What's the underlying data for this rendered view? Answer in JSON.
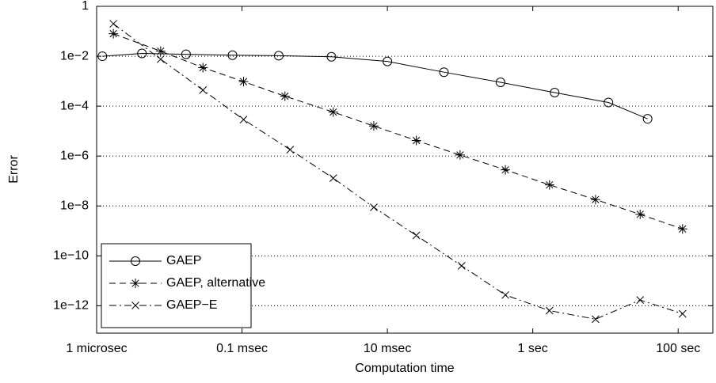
{
  "chart_data": {
    "type": "line",
    "xlabel": "Computation time",
    "ylabel": "Error",
    "xlog": true,
    "ylog": true,
    "xlim": [
      1e-06,
      300
    ],
    "ylim": [
      8e-14,
      1
    ],
    "xticks": [
      {
        "value": 1e-06,
        "label": "1 microsec"
      },
      {
        "value": 0.0001,
        "label": "0.1 msec"
      },
      {
        "value": 0.01,
        "label": "10 msec"
      },
      {
        "value": 1,
        "label": "1 sec"
      },
      {
        "value": 100,
        "label": "100 sec"
      }
    ],
    "yticks": [
      1,
      {
        "value": 0.01,
        "label": "1e−2"
      },
      {
        "value": 0.0001,
        "label": "1e−4"
      },
      {
        "value": 1e-06,
        "label": "1e−6"
      },
      {
        "value": 1e-08,
        "label": "1e−8"
      },
      {
        "value": 1e-10,
        "label": "1e−10"
      },
      {
        "value": 1e-12,
        "label": "1e−12"
      }
    ],
    "grid": "y",
    "legend": "lower left",
    "series": [
      {
        "name": "GAEP",
        "color": "#000000",
        "linestyle": "solid",
        "marker": "o",
        "x": [
          1.2e-06,
          4.2e-06,
          1.7e-05,
          7.4e-05,
          0.00032,
          0.0017,
          0.01,
          0.06,
          0.36,
          2,
          11,
          38
        ],
        "values": [
          0.01,
          0.013,
          0.012,
          0.011,
          0.0105,
          0.0095,
          0.0062,
          0.0023,
          0.0009,
          0.00035,
          0.00014,
          3.1e-05
        ]
      },
      {
        "name": "GAEP, alternative",
        "color": "#000000",
        "linestyle": "dashed",
        "marker": "*",
        "x": [
          1.7e-06,
          7.6e-06,
          2.9e-05,
          0.000105,
          0.00039,
          0.0018,
          0.0065,
          0.025,
          0.1,
          0.42,
          1.7,
          7.3,
          30,
          115
        ],
        "values": [
          0.08,
          0.016,
          0.0035,
          0.00096,
          0.00025,
          5.8e-05,
          1.6e-05,
          4.2e-06,
          1.1e-06,
          2.8e-07,
          7e-08,
          1.8e-08,
          4.6e-09,
          1.2e-09
        ]
      },
      {
        "name": "GAEP−E",
        "color": "#000000",
        "linestyle": "dashdot",
        "marker": "x",
        "x": [
          1.7e-06,
          7.6e-06,
          2.9e-05,
          0.000105,
          0.00046,
          0.0018,
          0.0065,
          0.025,
          0.105,
          0.42,
          1.7,
          7.3,
          30,
          115
        ],
        "values": [
          0.2,
          0.0076,
          0.00044,
          2.9e-05,
          1.8e-06,
          1.3e-07,
          8.8e-09,
          6.6e-10,
          4e-11,
          2.7e-12,
          6.4e-13,
          2.9e-13,
          1.7e-12,
          4.8e-13
        ]
      }
    ]
  }
}
